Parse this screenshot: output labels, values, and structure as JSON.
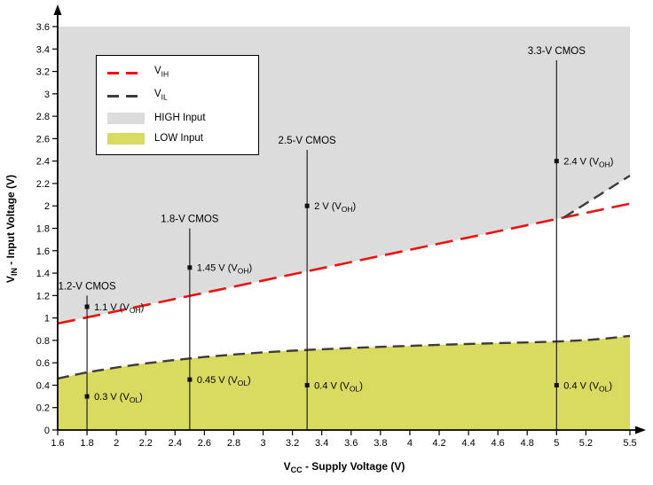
{
  "chart_data": {
    "type": "line",
    "xlabel": {
      "pre": "V",
      "sub": "CC",
      "post": " - Supply Voltage (V)"
    },
    "ylabel": {
      "pre": "V",
      "sub": "IN",
      "post": " - Input Voltage (V)"
    },
    "xlim": [
      1.6,
      5.5
    ],
    "ylim": [
      0,
      3.6
    ],
    "grid": false,
    "xticks": {
      "values": [
        1.6,
        1.8,
        2,
        2.2,
        2.4,
        2.6,
        2.8,
        3,
        3.2,
        3.4,
        3.6,
        3.8,
        4,
        4.2,
        4.4,
        4.6,
        4.8,
        5,
        5.2,
        5.5
      ],
      "labels": [
        "1.6",
        "1.8",
        "2",
        "2.2",
        "2.4",
        "2.6",
        "2.8",
        "3",
        "3.2",
        "3.4",
        "3.6",
        "3.8",
        "4",
        "4.2",
        "4.4",
        "4.6",
        "4.8",
        "5",
        "5.2",
        "5.5"
      ]
    },
    "yticks": {
      "values": [
        0,
        0.2,
        0.4,
        0.6,
        0.8,
        1,
        1.2,
        1.4,
        1.6,
        1.8,
        2,
        2.2,
        2.4,
        2.6,
        2.8,
        3,
        3.2,
        3.4,
        3.6
      ],
      "labels": [
        "0",
        "0.2",
        "0.4",
        "0.6",
        "0.8",
        "1",
        "1.2",
        "1.4",
        "1.6",
        "1.8",
        "2",
        "2.2",
        "2.4",
        "2.6",
        "2.8",
        "3",
        "3.2",
        "3.4",
        "3.6"
      ]
    },
    "colors": {
      "high_region": "#dcdcdc",
      "low_region": "#d9da60",
      "vih_line": "#ee1111",
      "vil_line": "#3c3c3c",
      "driver_line": "#222222",
      "axis": "#000000"
    },
    "series": [
      {
        "name": {
          "pre": "V",
          "sub": "IH"
        },
        "color_key": "vih_line",
        "dash": [
          20,
          9
        ],
        "width": 2.6,
        "points": [
          [
            1.6,
            0.95
          ],
          [
            5.5,
            2.02
          ]
        ]
      },
      {
        "name": {
          "pre": "V",
          "sub": "IL"
        },
        "color_key": "vil_line",
        "dash": [
          13,
          7
        ],
        "width": 2.4,
        "points": [
          [
            1.6,
            0.46
          ],
          [
            1.8,
            0.515
          ],
          [
            2,
            0.558
          ],
          [
            2.2,
            0.595
          ],
          [
            2.4,
            0.625
          ],
          [
            2.6,
            0.652
          ],
          [
            2.8,
            0.674
          ],
          [
            3,
            0.693
          ],
          [
            3.2,
            0.708
          ],
          [
            3.4,
            0.721
          ],
          [
            3.6,
            0.732
          ],
          [
            3.8,
            0.742
          ],
          [
            4,
            0.751
          ],
          [
            4.2,
            0.76
          ],
          [
            4.4,
            0.768
          ],
          [
            4.6,
            0.775
          ],
          [
            4.8,
            0.782
          ],
          [
            5,
            0.79
          ],
          [
            5.2,
            0.802
          ],
          [
            5.35,
            0.818
          ],
          [
            5.5,
            0.84
          ]
        ]
      }
    ],
    "regions": [
      {
        "label": "HIGH Input",
        "color_key": "high_region",
        "side": "above",
        "boundary": [
          [
            1.6,
            0.95
          ],
          [
            5.05,
            1.897
          ],
          [
            5.5,
            2.27
          ]
        ]
      },
      {
        "label": "LOW Input",
        "color_key": "low_region",
        "side": "below",
        "boundary_series": 1
      }
    ],
    "boundary_overlay": {
      "color_key": "vil_line",
      "dash": [
        13,
        7
      ],
      "width": 2.4,
      "points": [
        [
          5.05,
          1.897
        ],
        [
          5.5,
          2.27
        ]
      ]
    },
    "drivers": [
      {
        "label": "1.2-V CMOS",
        "x": 1.8,
        "line_top": 1.2,
        "voh": {
          "y": 1.1,
          "pre": "1.1 V (V",
          "sub": "OH",
          "post": ")"
        },
        "vol": {
          "y": 0.3,
          "pre": "0.3 V (V",
          "sub": "OL",
          "post": ")"
        }
      },
      {
        "label": "1.8-V CMOS",
        "x": 2.5,
        "line_top": 1.8,
        "voh": {
          "y": 1.45,
          "pre": "1.45 V (V",
          "sub": "OH",
          "post": ")"
        },
        "vol": {
          "y": 0.45,
          "pre": "0.45 V (V",
          "sub": "OL",
          "post": ")"
        }
      },
      {
        "label": "2.5-V CMOS",
        "x": 3.3,
        "line_top": 2.5,
        "voh": {
          "y": 2,
          "pre": "2 V (V",
          "sub": "OH",
          "post": ")"
        },
        "vol": {
          "y": 0.4,
          "pre": "0.4 V (V",
          "sub": "OL",
          "post": ")"
        }
      },
      {
        "label": "3.3-V CMOS",
        "x": 5,
        "line_top": 3.3,
        "voh": {
          "y": 2.4,
          "pre": "2.4 V (V",
          "sub": "OH",
          "post": ")"
        },
        "vol": {
          "y": 0.4,
          "pre": "0.4 V (V",
          "sub": "OL",
          "post": ")"
        }
      }
    ],
    "legend": {
      "position": "top-left",
      "items": [
        {
          "kind": "line",
          "color_key": "vih_line",
          "label": {
            "pre": "V",
            "sub": "IH",
            "post": ""
          }
        },
        {
          "kind": "line",
          "color_key": "vil_line",
          "label": {
            "pre": "V",
            "sub": "IL",
            "post": ""
          }
        },
        {
          "kind": "swatch",
          "color_key": "high_region",
          "label": {
            "pre": "HIGH Input",
            "sub": "",
            "post": ""
          }
        },
        {
          "kind": "swatch",
          "color_key": "low_region",
          "label": {
            "pre": "LOW Input",
            "sub": "",
            "post": ""
          }
        }
      ]
    }
  }
}
